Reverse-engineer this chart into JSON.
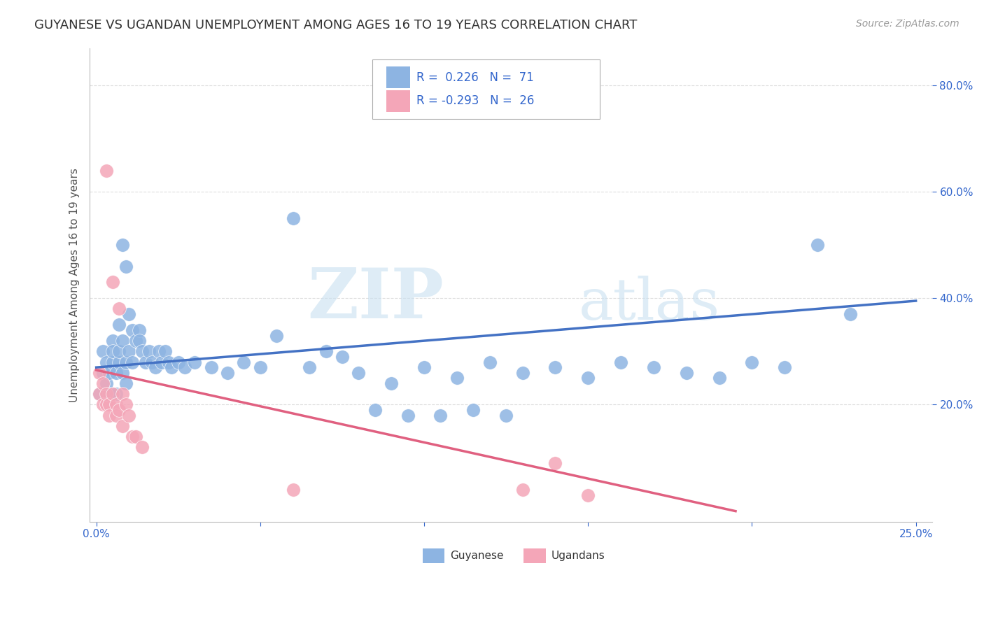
{
  "title": "GUYANESE VS UGANDAN UNEMPLOYMENT AMONG AGES 16 TO 19 YEARS CORRELATION CHART",
  "source": "Source: ZipAtlas.com",
  "ylabel": "Unemployment Among Ages 16 to 19 years",
  "y_tick_labels": [
    "20.0%",
    "40.0%",
    "60.0%",
    "80.0%"
  ],
  "y_tick_values": [
    0.2,
    0.4,
    0.6,
    0.8
  ],
  "x_lim": [
    -0.002,
    0.255
  ],
  "y_lim": [
    -0.02,
    0.87
  ],
  "watermark_zip": "ZIP",
  "watermark_atlas": "atlas",
  "blue_color": "#8DB4E2",
  "pink_color": "#F4A6B8",
  "blue_line_color": "#4472C4",
  "pink_line_color": "#E06080",
  "blue_scatter": [
    [
      0.001,
      0.22
    ],
    [
      0.002,
      0.26
    ],
    [
      0.002,
      0.3
    ],
    [
      0.003,
      0.28
    ],
    [
      0.003,
      0.24
    ],
    [
      0.004,
      0.26
    ],
    [
      0.004,
      0.22
    ],
    [
      0.005,
      0.28
    ],
    [
      0.005,
      0.32
    ],
    [
      0.005,
      0.3
    ],
    [
      0.006,
      0.26
    ],
    [
      0.006,
      0.22
    ],
    [
      0.007,
      0.28
    ],
    [
      0.007,
      0.35
    ],
    [
      0.007,
      0.3
    ],
    [
      0.008,
      0.26
    ],
    [
      0.008,
      0.32
    ],
    [
      0.008,
      0.5
    ],
    [
      0.009,
      0.46
    ],
    [
      0.009,
      0.28
    ],
    [
      0.009,
      0.24
    ],
    [
      0.01,
      0.3
    ],
    [
      0.01,
      0.37
    ],
    [
      0.011,
      0.28
    ],
    [
      0.011,
      0.34
    ],
    [
      0.012,
      0.32
    ],
    [
      0.013,
      0.34
    ],
    [
      0.013,
      0.32
    ],
    [
      0.014,
      0.3
    ],
    [
      0.015,
      0.28
    ],
    [
      0.016,
      0.3
    ],
    [
      0.017,
      0.28
    ],
    [
      0.018,
      0.27
    ],
    [
      0.019,
      0.3
    ],
    [
      0.02,
      0.28
    ],
    [
      0.021,
      0.3
    ],
    [
      0.022,
      0.28
    ],
    [
      0.023,
      0.27
    ],
    [
      0.025,
      0.28
    ],
    [
      0.027,
      0.27
    ],
    [
      0.03,
      0.28
    ],
    [
      0.035,
      0.27
    ],
    [
      0.04,
      0.26
    ],
    [
      0.045,
      0.28
    ],
    [
      0.05,
      0.27
    ],
    [
      0.06,
      0.55
    ],
    [
      0.065,
      0.27
    ],
    [
      0.07,
      0.3
    ],
    [
      0.08,
      0.26
    ],
    [
      0.09,
      0.24
    ],
    [
      0.1,
      0.27
    ],
    [
      0.11,
      0.25
    ],
    [
      0.12,
      0.28
    ],
    [
      0.13,
      0.26
    ],
    [
      0.14,
      0.27
    ],
    [
      0.15,
      0.25
    ],
    [
      0.16,
      0.28
    ],
    [
      0.17,
      0.27
    ],
    [
      0.18,
      0.26
    ],
    [
      0.19,
      0.25
    ],
    [
      0.2,
      0.28
    ],
    [
      0.21,
      0.27
    ],
    [
      0.22,
      0.5
    ],
    [
      0.23,
      0.37
    ],
    [
      0.055,
      0.33
    ],
    [
      0.075,
      0.29
    ],
    [
      0.085,
      0.19
    ],
    [
      0.095,
      0.18
    ],
    [
      0.105,
      0.18
    ],
    [
      0.115,
      0.19
    ],
    [
      0.125,
      0.18
    ]
  ],
  "pink_scatter": [
    [
      0.001,
      0.22
    ],
    [
      0.001,
      0.26
    ],
    [
      0.002,
      0.24
    ],
    [
      0.002,
      0.2
    ],
    [
      0.003,
      0.2
    ],
    [
      0.003,
      0.22
    ],
    [
      0.003,
      0.64
    ],
    [
      0.004,
      0.2
    ],
    [
      0.004,
      0.18
    ],
    [
      0.005,
      0.43
    ],
    [
      0.005,
      0.22
    ],
    [
      0.006,
      0.2
    ],
    [
      0.006,
      0.18
    ],
    [
      0.007,
      0.38
    ],
    [
      0.007,
      0.19
    ],
    [
      0.008,
      0.22
    ],
    [
      0.008,
      0.16
    ],
    [
      0.009,
      0.2
    ],
    [
      0.01,
      0.18
    ],
    [
      0.011,
      0.14
    ],
    [
      0.012,
      0.14
    ],
    [
      0.014,
      0.12
    ],
    [
      0.06,
      0.04
    ],
    [
      0.13,
      0.04
    ],
    [
      0.14,
      0.09
    ],
    [
      0.15,
      0.03
    ]
  ],
  "blue_trend_x": [
    0.0,
    0.25
  ],
  "blue_trend_y": [
    0.27,
    0.395
  ],
  "pink_trend_x": [
    0.0,
    0.195
  ],
  "pink_trend_y": [
    0.265,
    0.0
  ],
  "grid_color": "#DDDDDD",
  "grid_style": "--",
  "background_color": "#FFFFFF",
  "title_fontsize": 13,
  "source_fontsize": 10,
  "tick_fontsize": 11,
  "label_fontsize": 11,
  "legend_color": "#3366CC"
}
